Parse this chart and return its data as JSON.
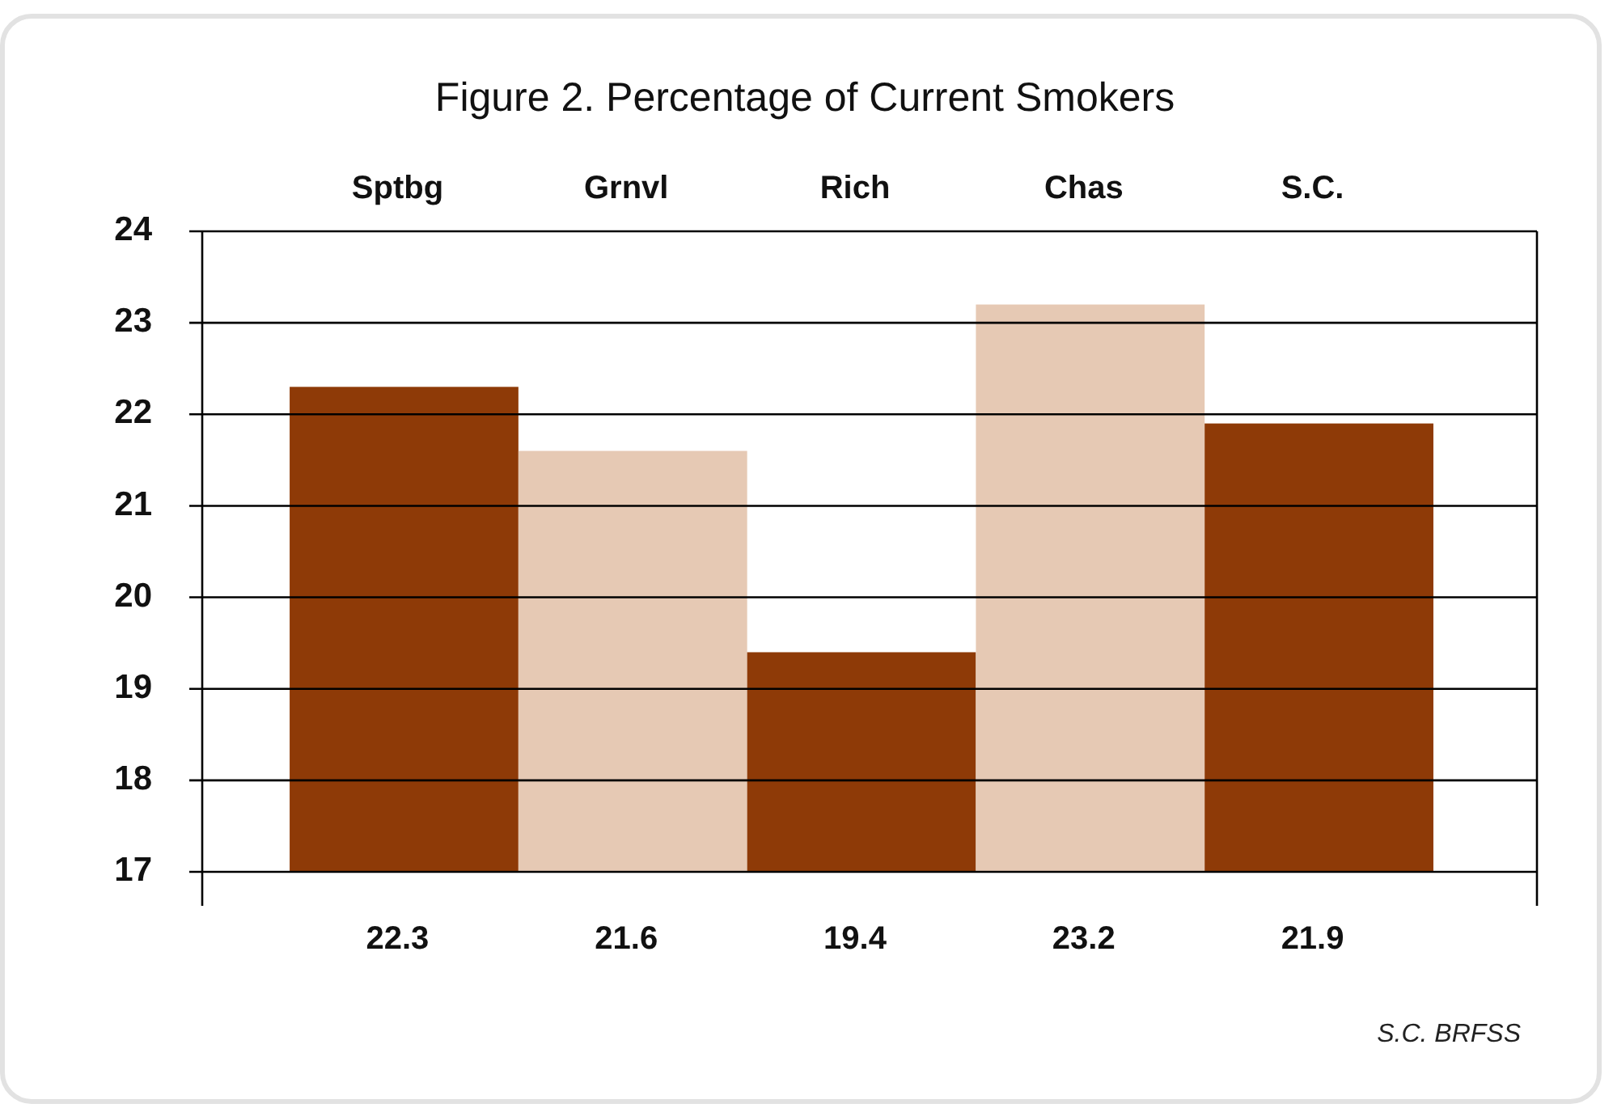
{
  "chart_data": {
    "type": "bar",
    "title": "Figure 2. Percentage of Current Smokers",
    "categories": [
      "Sptbg",
      "Grnvl",
      "Rich",
      "Chas",
      "S.C."
    ],
    "values": [
      22.3,
      21.6,
      19.4,
      23.2,
      21.9
    ],
    "colors": [
      "#8e3a07",
      "#e6c9b4",
      "#8e3a07",
      "#e6c9b4",
      "#8e3a07"
    ],
    "ylim": [
      17,
      24
    ],
    "yticks": [
      17,
      18,
      19,
      20,
      21,
      22,
      23,
      24
    ],
    "grid": "y",
    "data_labels": true,
    "annotations": [
      "S.C. BRFSS"
    ]
  }
}
